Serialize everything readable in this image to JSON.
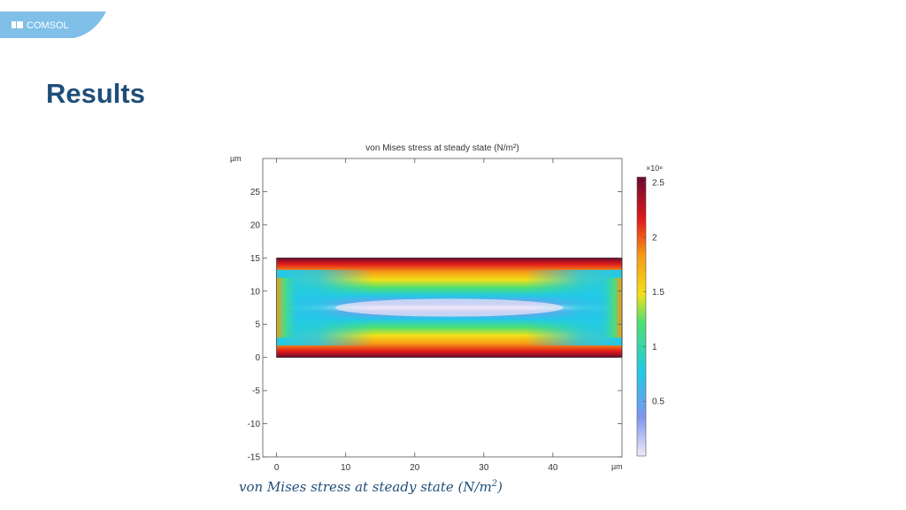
{
  "header": {
    "logo_text": "COMSOL",
    "brand_color": "#1f4e79"
  },
  "page": {
    "title": "Results"
  },
  "caption": {
    "text": "von Mises stress at steady state (N/m",
    "sup": "2",
    "close": ")"
  },
  "chart_data": {
    "type": "heatmap",
    "title": "von Mises stress at steady state (N/m²)",
    "x_unit": "µm",
    "y_unit": "µm",
    "xlim": [
      -2,
      50
    ],
    "ylim": [
      -15,
      30
    ],
    "x_ticks": [
      0,
      10,
      20,
      30,
      40
    ],
    "y_ticks": [
      -15,
      -10,
      -5,
      0,
      5,
      10,
      15,
      20,
      25
    ],
    "domain": {
      "x": [
        0,
        50
      ],
      "y": [
        0,
        15
      ]
    },
    "colorbar": {
      "multiplier": "×10⁸",
      "ticks": [
        0.5,
        1,
        1.5,
        2,
        2.5
      ],
      "range": [
        0,
        2.55
      ],
      "colormap": "rainbow"
    },
    "field": {
      "max_value": 2.5,
      "min_value": 0.05,
      "max_location": "top and bottom edges near center",
      "min_location": "center line"
    },
    "colors": {
      "low": "#f0eaf8",
      "blue": "#7f95ee",
      "cyan": "#22c9e6",
      "green": "#4fe071",
      "yellow": "#f2e017",
      "orange": "#f79a16",
      "red": "#e0191a",
      "high": "#6c0a30"
    }
  }
}
